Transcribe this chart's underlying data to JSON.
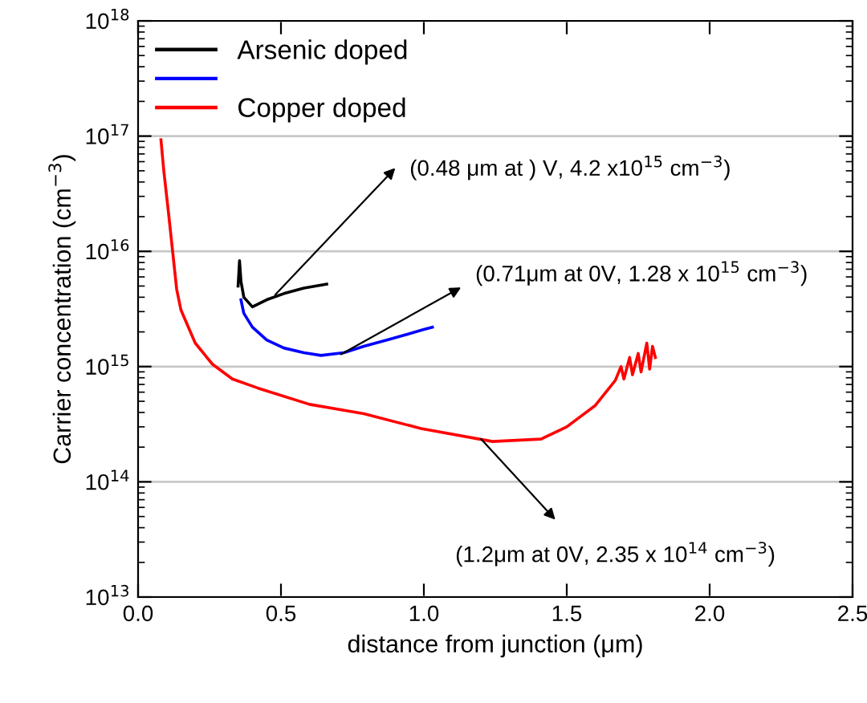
{
  "chart_data": {
    "type": "line",
    "xlabel": "distance from junction (μm)",
    "ylabel": "Carrier concentration (cm$^{−3}$)",
    "log": "y",
    "xlim": [
      0,
      2.5
    ],
    "xticks": [
      {
        "value": 0,
        "label": "0.0"
      },
      0.5,
      {
        "value": 1,
        "label": "1.0"
      },
      1.5,
      {
        "value": 2,
        "label": "2.0"
      },
      2.5
    ],
    "ylim": [
      10000000000000.0,
      1e+18
    ],
    "yticks": [
      {
        "value": 10000000000000.0,
        "label": "10$^{13}$"
      },
      {
        "value": 100000000000000.0,
        "label": "10$^{14}$"
      },
      {
        "value": 1000000000000000.0,
        "label": "10$^{15}$"
      },
      {
        "value": 1e+16,
        "label": "10$^{16}$"
      },
      {
        "value": 1e+17,
        "label": "10$^{17}$"
      },
      {
        "value": 1e+18,
        "label": "10$^{18}$"
      }
    ],
    "grid": "y",
    "legend": "top left",
    "series": [
      {
        "name": "Arsenic doped",
        "color": "#000000",
        "x": [
          0.35,
          0.355,
          0.36,
          0.37,
          0.4,
          0.45,
          0.51,
          0.58,
          0.66
        ],
        "values": [
          5000000000000000.0,
          8300000000000000.0,
          5500000000000000.0,
          4000000000000000.0,
          3300000000000000.0,
          3800000000000000.0,
          4300000000000000.0,
          4800000000000000.0,
          5200000000000000.0
        ]
      },
      {
        "color": "#0000ff",
        "x": [
          0.36,
          0.37,
          0.4,
          0.45,
          0.51,
          0.58,
          0.64,
          0.72,
          0.79,
          0.87,
          0.94,
          1.0,
          1.03
        ],
        "values": [
          3800000000000000.0,
          2900000000000000.0,
          2200000000000000.0,
          1700000000000000.0,
          1450000000000000.0,
          1320000000000000.0,
          1250000000000000.0,
          1320000000000000.0,
          1500000000000000.0,
          1700000000000000.0,
          1900000000000000.0,
          2100000000000000.0,
          2200000000000000.0
        ]
      },
      {
        "name": "Copper doped",
        "color": "#ff0000",
        "x": [
          0.08,
          0.09,
          0.107,
          0.135,
          0.15,
          0.2,
          0.26,
          0.33,
          0.42,
          0.6,
          0.79,
          0.99,
          1.24,
          1.41,
          1.5,
          1.6,
          1.67,
          1.69,
          1.7,
          1.72,
          1.73,
          1.75,
          1.76,
          1.78,
          1.79,
          1.8,
          1.81
        ],
        "values": [
          9.3e+16,
          5e+16,
          2.1e+16,
          4700000000000000.0,
          3100000000000000.0,
          1600000000000000.0,
          1050000000000000.0,
          780000000000000.0,
          650000000000000.0,
          470000000000000.0,
          390000000000000.0,
          290000000000000.0,
          224000000000000.0,
          235000000000000.0,
          300000000000000.0,
          460000000000000.0,
          760000000000000.0,
          1000000000000000.0,
          780000000000000.0,
          1200000000000000.0,
          850000000000000.0,
          1300000000000000.0,
          900000000000000.0,
          1600000000000000.0,
          950000000000000.0,
          1500000000000000.0,
          1200000000000000.0
        ]
      }
    ],
    "annotations": [
      {
        "text": "(0.48 μm at ) V, 4.2 x10$^{15}$ cm$^{−3}$)",
        "x": 0.48,
        "y": 4200000000000000.0
      },
      {
        "text": "(0.71μm at 0V, 1.28 x 10$^{15}$ cm$^{−3}$)",
        "x": 0.71,
        "y": 1280000000000000.0
      },
      {
        "text": "(1.2μm at 0V, 2.35 x 10$^{14}$ cm$^{−3}$)",
        "x": 1.2,
        "y": 235000000000000.0
      }
    ]
  }
}
